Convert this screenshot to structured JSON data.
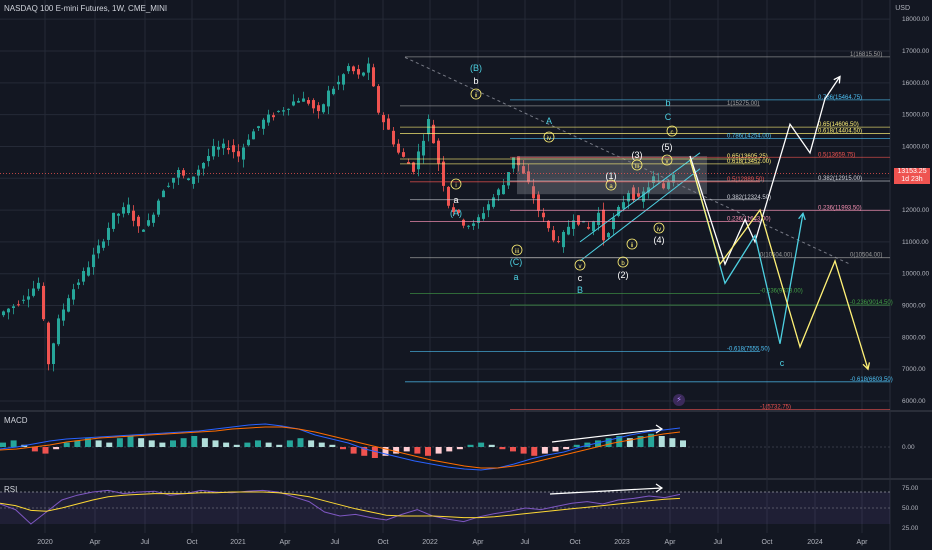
{
  "header": {
    "title": "NASDAQ 100 E-mini Futures, 1W, CME_MINI",
    "currency": "USD"
  },
  "price_tag": {
    "price": "13153.25",
    "countdown": "1d 23h"
  },
  "panes": {
    "macd_label": "MACD",
    "rsi_label": "RSI"
  },
  "colors": {
    "background": "#131722",
    "grid": "#252a37",
    "up": "#26a69a",
    "down": "#ef5350",
    "yellow": "#fff176",
    "cyan": "#4dd0e1",
    "white": "#ffffff",
    "green": "#43a047"
  },
  "icons": {
    "event": "lightning-icon"
  },
  "chart_data": {
    "type": "candlestick",
    "x_ticks": [
      "2020",
      "Apr",
      "Jul",
      "Oct",
      "2021",
      "Apr",
      "Jul",
      "Oct",
      "2022",
      "Apr",
      "Jul",
      "Oct",
      "2023",
      "Apr",
      "Jul",
      "Oct",
      "2024",
      "Apr"
    ],
    "price_axis": {
      "ticks": [
        "18000.00",
        "17000.00",
        "16000.00",
        "15000.00",
        "14000.00",
        "13000.00",
        "12000.00",
        "11000.00",
        "10000.00",
        "9000.00",
        "8000.00",
        "7000.00",
        "6000.00"
      ]
    },
    "price_path": [
      [
        0,
        8700
      ],
      [
        3,
        9000
      ],
      [
        6,
        9400
      ],
      [
        8,
        9700
      ],
      [
        10,
        7200
      ],
      [
        12,
        8500
      ],
      [
        14,
        9300
      ],
      [
        17,
        10000
      ],
      [
        20,
        10800
      ],
      [
        23,
        11800
      ],
      [
        26,
        12100
      ],
      [
        28,
        11400
      ],
      [
        30,
        11600
      ],
      [
        33,
        12700
      ],
      [
        36,
        13200
      ],
      [
        38,
        12900
      ],
      [
        40,
        13300
      ],
      [
        43,
        13900
      ],
      [
        46,
        14000
      ],
      [
        48,
        13700
      ],
      [
        50,
        14300
      ],
      [
        53,
        14800
      ],
      [
        56,
        15100
      ],
      [
        58,
        15300
      ],
      [
        60,
        15500
      ],
      [
        62,
        15400
      ],
      [
        64,
        15000
      ],
      [
        66,
        15700
      ],
      [
        68,
        16000
      ],
      [
        70,
        16500
      ],
      [
        72,
        16200
      ],
      [
        74,
        16500
      ],
      [
        76,
        15100
      ],
      [
        78,
        14500
      ],
      [
        80,
        13800
      ],
      [
        83,
        13300
      ],
      [
        86,
        14800
      ],
      [
        88,
        13500
      ],
      [
        90,
        12200
      ],
      [
        93,
        11600
      ],
      [
        95,
        11500
      ],
      [
        98,
        12200
      ],
      [
        101,
        12800
      ],
      [
        103,
        13700
      ],
      [
        106,
        12800
      ],
      [
        108,
        12000
      ],
      [
        110,
        11400
      ],
      [
        112,
        10900
      ],
      [
        115,
        11800
      ],
      [
        118,
        11400
      ],
      [
        120,
        11900
      ],
      [
        121,
        11100
      ],
      [
        123,
        11700
      ],
      [
        126,
        12600
      ],
      [
        128,
        12300
      ],
      [
        131,
        13000
      ],
      [
        133,
        12700
      ],
      [
        135,
        13200
      ]
    ],
    "fib_levels": [
      {
        "label": "1(16815.50)",
        "price": 16815.5,
        "color": "#9e9e9e"
      },
      {
        "label": "0.786(15464.75)",
        "price": 15464.75,
        "color": "#4fc3f7"
      },
      {
        "label": "1(15275.00)",
        "price": 15275.0,
        "color": "#9e9e9e"
      },
      {
        "label": "0.65(14606.50)",
        "price": 14606.5,
        "color": "#fff176"
      },
      {
        "label": "0.618(14404.50)",
        "price": 14404.5,
        "color": "#fff176"
      },
      {
        "label": "0.786(14254.00)",
        "price": 14254.0,
        "color": "#4fc3f7"
      },
      {
        "label": "0.65(13605.25)",
        "price": 13605.25,
        "color": "#fff176"
      },
      {
        "label": "0.618(13452.00)",
        "price": 13452.0,
        "color": "#fff176"
      },
      {
        "label": "0.5(13659.75)",
        "price": 13659.75,
        "color": "#ef5350"
      },
      {
        "label": "0.5(12889.50)",
        "price": 12889.5,
        "color": "#ef5350"
      },
      {
        "label": "0.382(12915.00)",
        "price": 12915.0,
        "color": "#d1d4dc"
      },
      {
        "label": "0.382(12324.50)",
        "price": 12324.5,
        "color": "#d1d4dc"
      },
      {
        "label": "0.236(11993.50)",
        "price": 11993.5,
        "color": "#f48fb1"
      },
      {
        "label": "0.236(11643.00)",
        "price": 11643.0,
        "color": "#f48fb1"
      },
      {
        "label": "0(10504.00)",
        "price": 10504.0,
        "color": "#9e9e9e"
      },
      {
        "label": "0(10504.00)",
        "price": 10504.0,
        "color": "#9e9e9e"
      },
      {
        "label": "-0.236(9378.00)",
        "price": 9378.0,
        "color": "#43a047"
      },
      {
        "label": "-0.236(9014.50)",
        "price": 9014.5,
        "color": "#43a047"
      },
      {
        "label": "-0.618(7555.50)",
        "price": 7555.5,
        "color": "#4fc3f7"
      },
      {
        "label": "-0.618(6603.50)",
        "price": 6603.5,
        "color": "#4fc3f7"
      },
      {
        "label": "-1(5732.75)",
        "price": 5732.75,
        "color": "#ef5350"
      }
    ],
    "wave_labels": [
      {
        "text": "(B)",
        "color": "#4dd0e1",
        "circled": false
      },
      {
        "text": "b",
        "color": "#ffffff",
        "circled": false
      },
      {
        "text": "ii",
        "color": "#fff176",
        "circled": true
      },
      {
        "text": "i",
        "color": "#fff176",
        "circled": true
      },
      {
        "text": "a",
        "color": "#ffffff",
        "circled": false
      },
      {
        "text": "(A)",
        "color": "#4dd0e1",
        "circled": false
      },
      {
        "text": "A",
        "color": "#4dd0e1",
        "circled": false
      },
      {
        "text": "iv",
        "color": "#fff176",
        "circled": true
      },
      {
        "text": "iii",
        "color": "#fff176",
        "circled": true
      },
      {
        "text": "(C)",
        "color": "#4dd0e1",
        "circled": false
      },
      {
        "text": "a",
        "color": "#4dd0e1",
        "circled": false
      },
      {
        "text": "v",
        "color": "#fff176",
        "circled": true
      },
      {
        "text": "c",
        "color": "#ffffff",
        "circled": false
      },
      {
        "text": "B",
        "color": "#4dd0e1",
        "circled": false
      },
      {
        "text": "(1)",
        "color": "#ffffff",
        "circled": false
      },
      {
        "text": "a",
        "color": "#fff176",
        "circled": true
      },
      {
        "text": "b",
        "color": "#fff176",
        "circled": true
      },
      {
        "text": "(2)",
        "color": "#ffffff",
        "circled": false
      },
      {
        "text": "ii",
        "color": "#fff176",
        "circled": true
      },
      {
        "text": "(3)",
        "color": "#ffffff",
        "circled": false
      },
      {
        "text": "iii",
        "color": "#fff176",
        "circled": true
      },
      {
        "text": "(4)",
        "color": "#ffffff",
        "circled": false
      },
      {
        "text": "iv",
        "color": "#fff176",
        "circled": true
      },
      {
        "text": "(5)",
        "color": "#ffffff",
        "circled": false
      },
      {
        "text": "v",
        "color": "#fff176",
        "circled": true
      },
      {
        "text": "c",
        "color": "#fff176",
        "circled": true
      },
      {
        "text": "b",
        "color": "#4dd0e1",
        "circled": false
      },
      {
        "text": "C",
        "color": "#4dd0e1",
        "circled": false
      },
      {
        "text": "c",
        "color": "#4dd0e1",
        "circled": false
      }
    ],
    "projections": [
      {
        "name": "white",
        "color": "#ffffff",
        "path": [
          [
            13700,
            0
          ],
          [
            10300,
            1
          ],
          [
            11700,
            2
          ],
          [
            11000,
            3
          ],
          [
            14700,
            4
          ],
          [
            13800,
            5
          ],
          [
            15500,
            6
          ],
          [
            16200,
            7
          ]
        ]
      },
      {
        "name": "cyan",
        "color": "#4dd0e1",
        "path": [
          [
            13600,
            0
          ],
          [
            9700,
            1
          ],
          [
            11200,
            2
          ],
          [
            7800,
            3
          ],
          [
            11900,
            4
          ]
        ]
      },
      {
        "name": "yellow",
        "color": "#fff176",
        "path": [
          [
            13600,
            0
          ],
          [
            10300,
            1
          ],
          [
            12000,
            2
          ],
          [
            7700,
            3
          ],
          [
            10400,
            4
          ],
          [
            7000,
            5
          ]
        ]
      }
    ],
    "macd": {
      "ticks": [
        "0.00"
      ],
      "histogram": [
        2,
        3,
        1,
        -2,
        -3,
        -1,
        2,
        3,
        4,
        3,
        2,
        4,
        5,
        4,
        3,
        2,
        3,
        4,
        5,
        4,
        3,
        2,
        1,
        2,
        3,
        2,
        1,
        3,
        4,
        3,
        2,
        1,
        -1,
        -3,
        -4,
        -5,
        -4,
        -3,
        -2,
        -3,
        -4,
        -3,
        -2,
        -1,
        1,
        2,
        1,
        -1,
        -2,
        -3,
        -4,
        -3,
        -2,
        -1,
        1,
        2,
        3,
        4,
        5,
        4,
        5,
        6,
        5,
        4,
        3
      ],
      "macd_line": [
        -2,
        0,
        3,
        6,
        8,
        9,
        10,
        11,
        12,
        13,
        14,
        15,
        16,
        18,
        20,
        22,
        23,
        21,
        18,
        12,
        8,
        4,
        -2,
        -6,
        -10,
        -14,
        -17,
        -20,
        -22,
        -23,
        -21,
        -17,
        -12,
        -8,
        -5,
        0,
        4,
        8,
        12,
        15,
        17,
        19
      ],
      "signal_line": [
        -3,
        -2,
        0,
        2,
        5,
        7,
        9,
        10,
        11,
        12,
        13,
        14,
        15,
        16,
        18,
        19,
        20,
        20,
        18,
        15,
        11,
        7,
        3,
        -1,
        -5,
        -9,
        -13,
        -16,
        -19,
        -21,
        -21,
        -19,
        -16,
        -12,
        -8,
        -4,
        0,
        4,
        7,
        10,
        13,
        15
      ]
    },
    "rsi": {
      "ticks": [
        "75.00",
        "50.00",
        "25.00"
      ],
      "rsi_line": [
        55,
        48,
        30,
        45,
        60,
        66,
        70,
        72,
        68,
        70,
        71,
        66,
        68,
        72,
        70,
        69,
        71,
        72,
        70,
        64,
        58,
        45,
        40,
        42,
        38,
        35,
        42,
        48,
        40,
        36,
        33,
        39,
        43,
        46,
        50,
        48,
        52,
        56,
        58,
        55,
        60,
        62,
        65,
        63,
        67
      ],
      "rsi_ma": [
        56,
        53,
        47,
        46,
        50,
        55,
        60,
        64,
        66,
        67,
        68,
        68,
        68,
        69,
        69,
        70,
        70,
        70,
        69,
        67,
        64,
        59,
        54,
        49,
        45,
        41,
        40,
        40,
        40,
        39,
        38,
        38,
        39,
        41,
        43,
        45,
        47,
        49,
        51,
        53,
        55,
        57,
        59,
        61,
        62
      ]
    }
  }
}
